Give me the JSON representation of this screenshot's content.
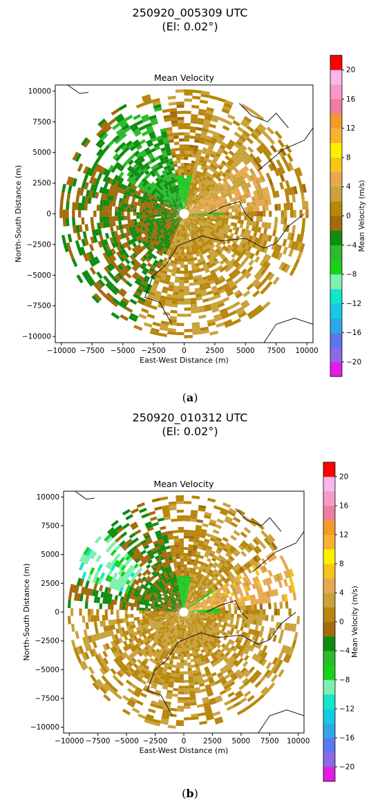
{
  "panels": [
    {
      "caption_letter": "a",
      "suptitle_line1": "250920_005309 UTC",
      "suptitle_line2": "(El: 0.02°)",
      "title": "Mean Velocity",
      "xlabel": "East-West Distance (m)",
      "ylabel": "North-South Distance (m)",
      "cbar_label": "Mean Velocity (m/s)"
    },
    {
      "caption_letter": "b",
      "suptitle_line1": "250920_010312 UTC",
      "suptitle_line2": "(El: 0.02°)",
      "title": "Mean Velocity",
      "xlabel": "East-West Distance (m)",
      "ylabel": "North-South Distance (m)",
      "cbar_label": "Mean Velocity (m/s)"
    }
  ],
  "chart_data": [
    {
      "type": "heatmap",
      "title": "Mean Velocity",
      "xlabel": "East-West Distance (m)",
      "ylabel": "North-South Distance (m)",
      "xlim": [
        -10500,
        10500
      ],
      "ylim": [
        -10500,
        10500
      ],
      "xticks": [
        -10000,
        -7500,
        -5000,
        -2500,
        0,
        2500,
        5000,
        7500,
        10000
      ],
      "yticks": [
        -10000,
        -7500,
        -5000,
        -2500,
        0,
        2500,
        5000,
        7500,
        10000
      ],
      "colorbar": {
        "label": "Mean Velocity (m/s)",
        "range": [
          -22,
          22
        ],
        "ticks": [
          -20,
          -16,
          -12,
          -8,
          -4,
          0,
          4,
          8,
          12,
          16,
          20
        ],
        "colors": [
          "#e31ce3",
          "#8a6ae6",
          "#5b77f0",
          "#2ea8e6",
          "#17c9e2",
          "#14e6c8",
          "#7ff0b0",
          "#18d118",
          "#2bbb2b",
          "#0f8c0f",
          "#a36b0a",
          "#b8860b",
          "#c9a23a",
          "#e8a850",
          "#f5c518",
          "#ffef00",
          "#f7b234",
          "#f49a2a",
          "#f07ca0",
          "#f79ac8",
          "#fbb6f0",
          "#ff0000"
        ]
      },
      "regions": [
        {
          "r": [
            0,
            3000
          ],
          "az": [
            0,
            360
          ],
          "value": -6
        },
        {
          "r": [
            0,
            10000
          ],
          "az": [
            200,
            330
          ],
          "value": -2
        },
        {
          "r": [
            0,
            9000
          ],
          "az": [
            300,
            345
          ],
          "value": -4
        },
        {
          "r": [
            0,
            7000
          ],
          "az": [
            45,
            85
          ],
          "value": 4
        },
        {
          "r": [
            0,
            10000
          ],
          "az": [
            10,
            45
          ],
          "value": 2
        },
        {
          "r": [
            0,
            10000
          ],
          "az": [
            90,
            200
          ],
          "value": 2
        }
      ]
    },
    {
      "type": "heatmap",
      "title": "Mean Velocity",
      "xlabel": "East-West Distance (m)",
      "ylabel": "North-South Distance (m)",
      "xlim": [
        -10500,
        10500
      ],
      "ylim": [
        -10500,
        10500
      ],
      "xticks": [
        -10000,
        -7500,
        -5000,
        -2500,
        0,
        2500,
        5000,
        7500,
        10000
      ],
      "yticks": [
        -10000,
        -7500,
        -5000,
        -2500,
        0,
        2500,
        5000,
        7500,
        10000
      ],
      "colorbar": {
        "label": "Mean Velocity (m/s)",
        "range": [
          -22,
          22
        ],
        "ticks": [
          -20,
          -16,
          -12,
          -8,
          -4,
          0,
          4,
          8,
          12,
          16,
          20
        ],
        "colors": [
          "#e31ce3",
          "#8a6ae6",
          "#5b77f0",
          "#2ea8e6",
          "#17c9e2",
          "#14e6c8",
          "#7ff0b0",
          "#18d118",
          "#2bbb2b",
          "#0f8c0f",
          "#a36b0a",
          "#b8860b",
          "#c9a23a",
          "#e8a850",
          "#f5c518",
          "#ffef00",
          "#f7b234",
          "#f49a2a",
          "#f07ca0",
          "#f79ac8",
          "#fbb6f0",
          "#ff0000"
        ]
      },
      "regions": [
        {
          "r": [
            0,
            3000
          ],
          "az": [
            0,
            360
          ],
          "value": -6
        },
        {
          "r": [
            0,
            10000
          ],
          "az": [
            270,
            345
          ],
          "value": -2
        },
        {
          "r": [
            5000,
            10000
          ],
          "az": [
            285,
            315
          ],
          "value": -9
        },
        {
          "r": [
            0,
            10000
          ],
          "az": [
            55,
            80
          ],
          "value": 5
        },
        {
          "r": [
            0,
            10000
          ],
          "az": [
            10,
            50
          ],
          "value": 2
        },
        {
          "r": [
            0,
            10000
          ],
          "az": [
            90,
            270
          ],
          "value": 2
        }
      ]
    }
  ]
}
